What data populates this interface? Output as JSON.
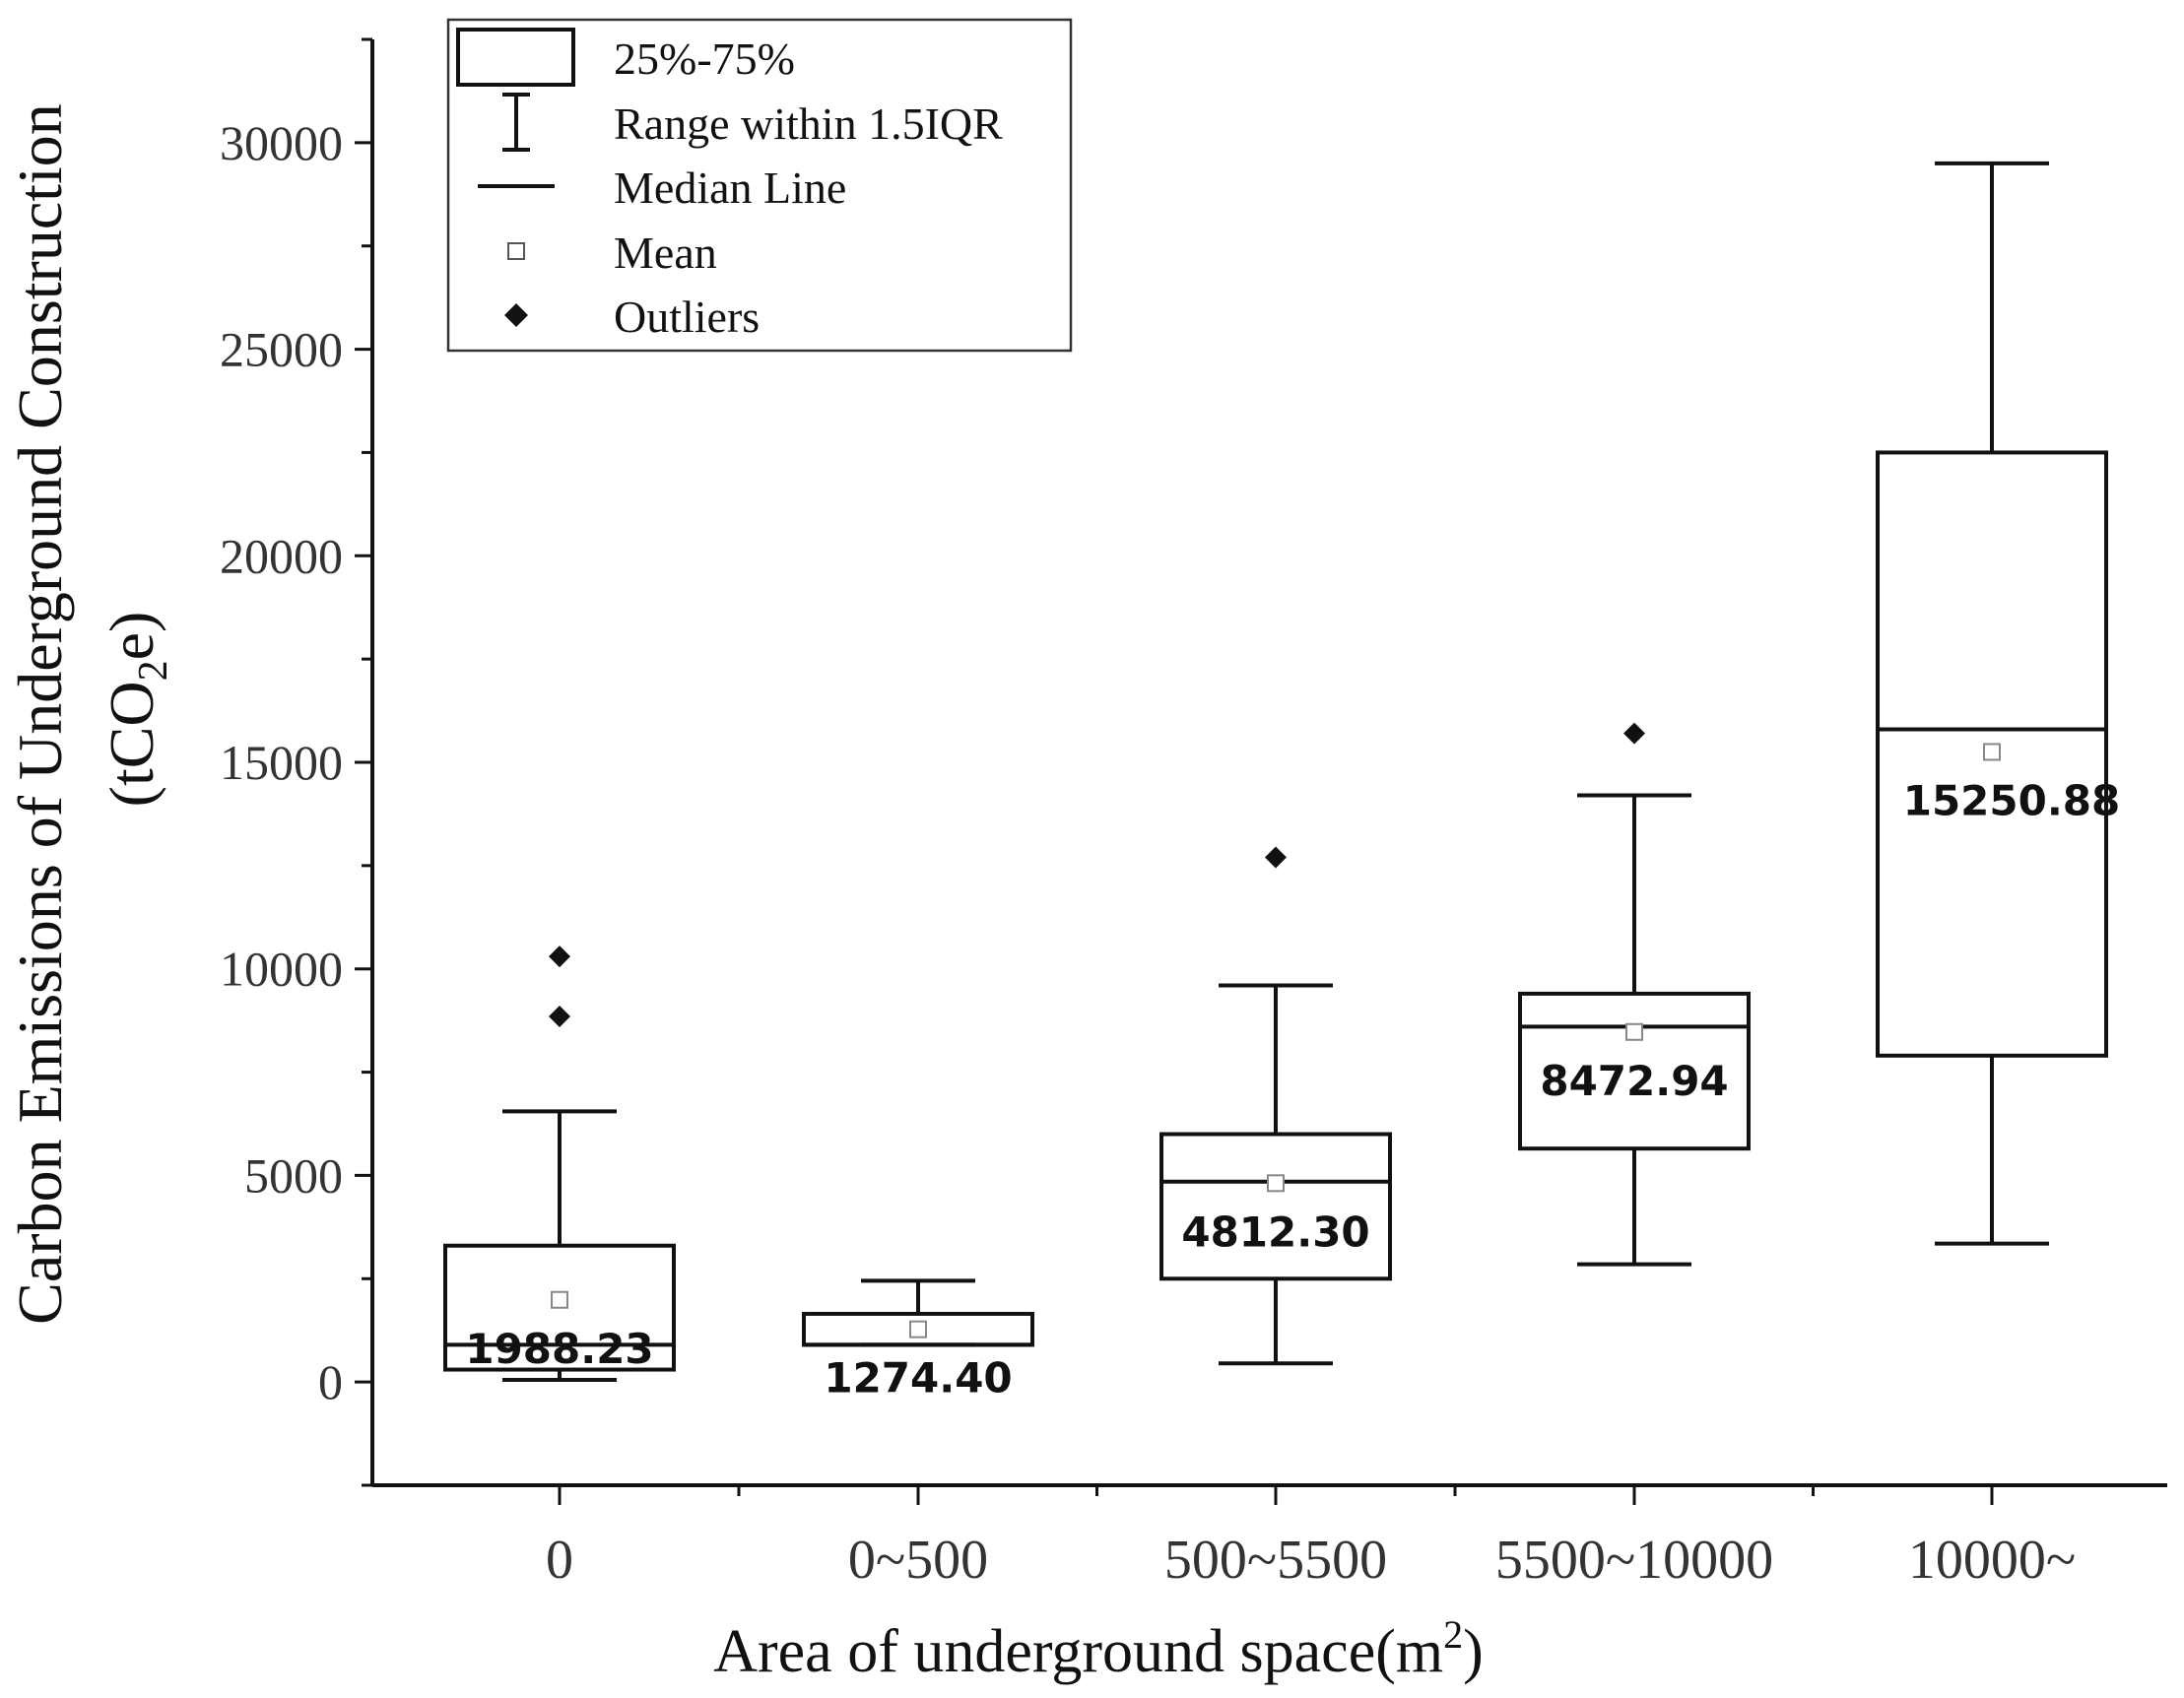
{
  "chart_data": {
    "type": "box",
    "ylabel_line1": "Carbon Emissions of Underground Construction",
    "ylabel_line2": "(tCO2e)",
    "xlabel": "Area of underground space(m2)",
    "ylim": [
      -2500,
      32500
    ],
    "yticks": [
      0,
      5000,
      10000,
      15000,
      20000,
      25000,
      30000
    ],
    "categories": [
      "0",
      "0~500",
      "500~5500",
      "5500~10000",
      "10000~"
    ],
    "boxes": [
      {
        "category": "0",
        "whisker_low": 50,
        "q1": 300,
        "median": 900,
        "q3": 3300,
        "whisker_high": 6550,
        "mean": 1988.23,
        "mean_label": "1988.23",
        "outliers": [
          8850,
          10300
        ]
      },
      {
        "category": "0~500",
        "whisker_low": 900,
        "q1": 900,
        "median": 900,
        "q3": 1650,
        "whisker_high": 2450,
        "mean": 1274.4,
        "mean_label": "1274.40",
        "outliers": []
      },
      {
        "category": "500~5500",
        "whisker_low": 450,
        "q1": 2500,
        "median": 4850,
        "q3": 6000,
        "whisker_high": 9600,
        "mean": 4812.3,
        "mean_label": "4812.30",
        "outliers": [
          12700
        ]
      },
      {
        "category": "5500~10000",
        "whisker_low": 2850,
        "q1": 5650,
        "median": 8600,
        "q3": 9400,
        "whisker_high": 14200,
        "mean": 8472.94,
        "mean_label": "8472.94",
        "outliers": [
          15700
        ]
      },
      {
        "category": "10000~",
        "whisker_low": 3350,
        "q1": 7900,
        "median": 15800,
        "q3": 22500,
        "whisker_high": 29500,
        "mean": 15250.88,
        "mean_label": "15250.88",
        "outliers": []
      }
    ],
    "legend": {
      "placement": "top-left",
      "items": [
        {
          "symbol": "box",
          "label": "25%-75%"
        },
        {
          "symbol": "whisker",
          "label": "Range within 1.5IQR"
        },
        {
          "symbol": "median",
          "label": "Median Line"
        },
        {
          "symbol": "mean",
          "label": "Mean"
        },
        {
          "symbol": "outlier",
          "label": "Outliers"
        }
      ]
    }
  }
}
